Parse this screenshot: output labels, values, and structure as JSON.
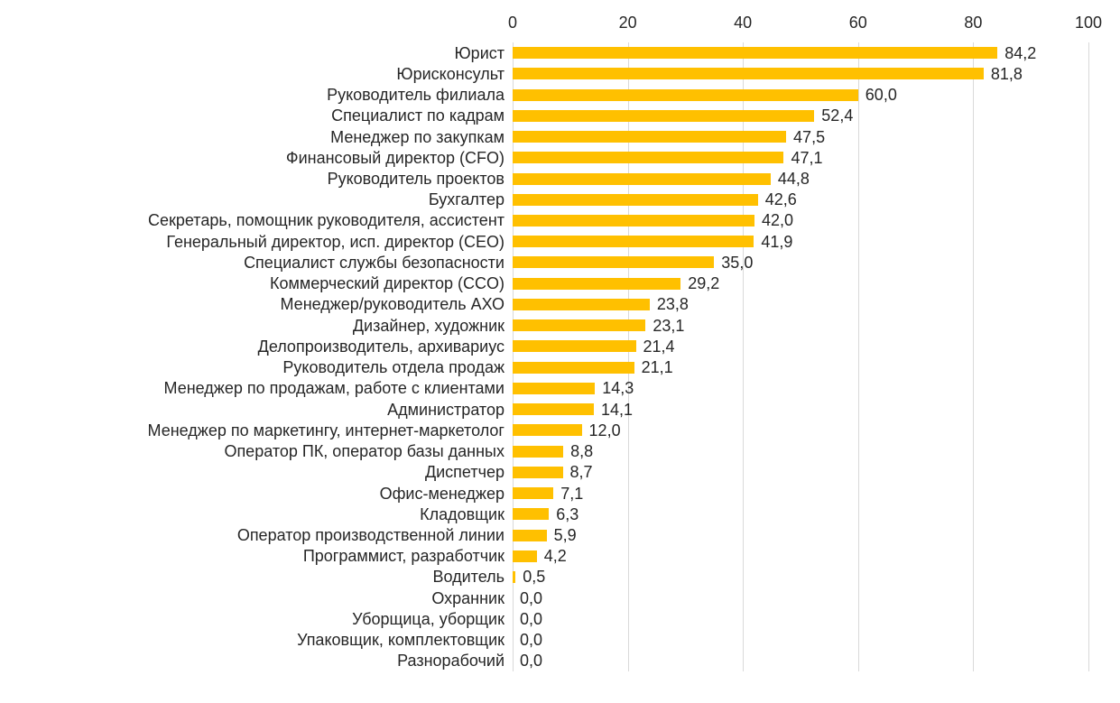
{
  "chart_data": {
    "type": "bar",
    "orientation": "horizontal",
    "title": "",
    "xlabel": "",
    "ylabel": "",
    "xlim": [
      0,
      100
    ],
    "x_ticks": [
      0,
      20,
      40,
      60,
      80,
      100
    ],
    "axis_position": "top",
    "grid": "vertical",
    "legend": null,
    "bar_color": "#FFC000",
    "gridline_color": "#D9D9D9",
    "text_color": "#262626",
    "decimal_separator": ",",
    "categories": [
      "Юрист",
      "Юрисконсульт",
      "Руководитель филиала",
      "Специалист по кадрам",
      "Менеджер по закупкам",
      "Финансовый директор (CFO)",
      "Руководитель проектов",
      "Бухгалтер",
      "Секретарь, помощник руководителя, ассистент",
      "Генеральный директор, исп. директор (CEO)",
      "Специалист службы безопасности",
      "Коммерческий директор (CCO)",
      "Менеджер/руководитель АХО",
      "Дизайнер, художник",
      "Делопроизводитель, архивариус",
      "Руководитель отдела продаж",
      "Менеджер по продажам, работе с клиентами",
      "Администратор",
      "Менеджер по маркетингу, интернет-маркетолог",
      "Оператор ПК, оператор базы данных",
      "Диспетчер",
      "Офис-менеджер",
      "Кладовщик",
      "Оператор производственной линии",
      "Программист, разработчик",
      "Водитель",
      "Охранник",
      "Уборщица, уборщик",
      "Упаковщик, комплектовщик",
      "Разнорабочий"
    ],
    "values": [
      84.2,
      81.8,
      60.0,
      52.4,
      47.5,
      47.1,
      44.8,
      42.6,
      42.0,
      41.9,
      35.0,
      29.2,
      23.8,
      23.1,
      21.4,
      21.1,
      14.3,
      14.1,
      12.0,
      8.8,
      8.7,
      7.1,
      6.3,
      5.9,
      4.2,
      0.5,
      0.0,
      0.0,
      0.0,
      0.0
    ],
    "value_labels": [
      "84,2",
      "81,8",
      "60,0",
      "52,4",
      "47,5",
      "47,1",
      "44,8",
      "42,6",
      "42,0",
      "41,9",
      "35,0",
      "29,2",
      "23,8",
      "23,1",
      "21,4",
      "21,1",
      "14,3",
      "14,1",
      "12,0",
      "8,8",
      "8,7",
      "7,1",
      "6,3",
      "5,9",
      "4,2",
      "0,5",
      "0,0",
      "0,0",
      "0,0",
      "0,0"
    ]
  }
}
